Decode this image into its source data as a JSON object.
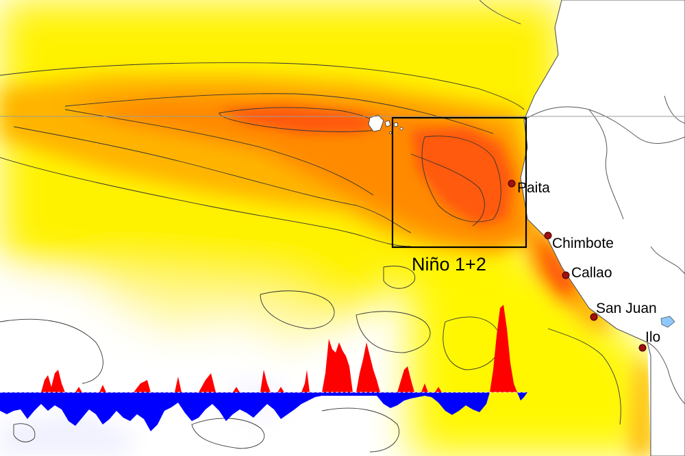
{
  "map": {
    "region_label": "Niño 1+2",
    "cities": [
      {
        "name": "Paita"
      },
      {
        "name": "Chimbote"
      },
      {
        "name": "Callao"
      },
      {
        "name": "San Juan"
      },
      {
        "name": "Ilo"
      }
    ],
    "colors": {
      "ocean_cool": "#ffffff",
      "ocean_warm": "#fff200",
      "ocean_hot": "#ffa800",
      "anomaly_core": "#ff5a10",
      "land": "#ffffff",
      "city_marker": "#a01010",
      "index_positive": "#ff0000",
      "index_negative": "#0000ff"
    }
  }
}
